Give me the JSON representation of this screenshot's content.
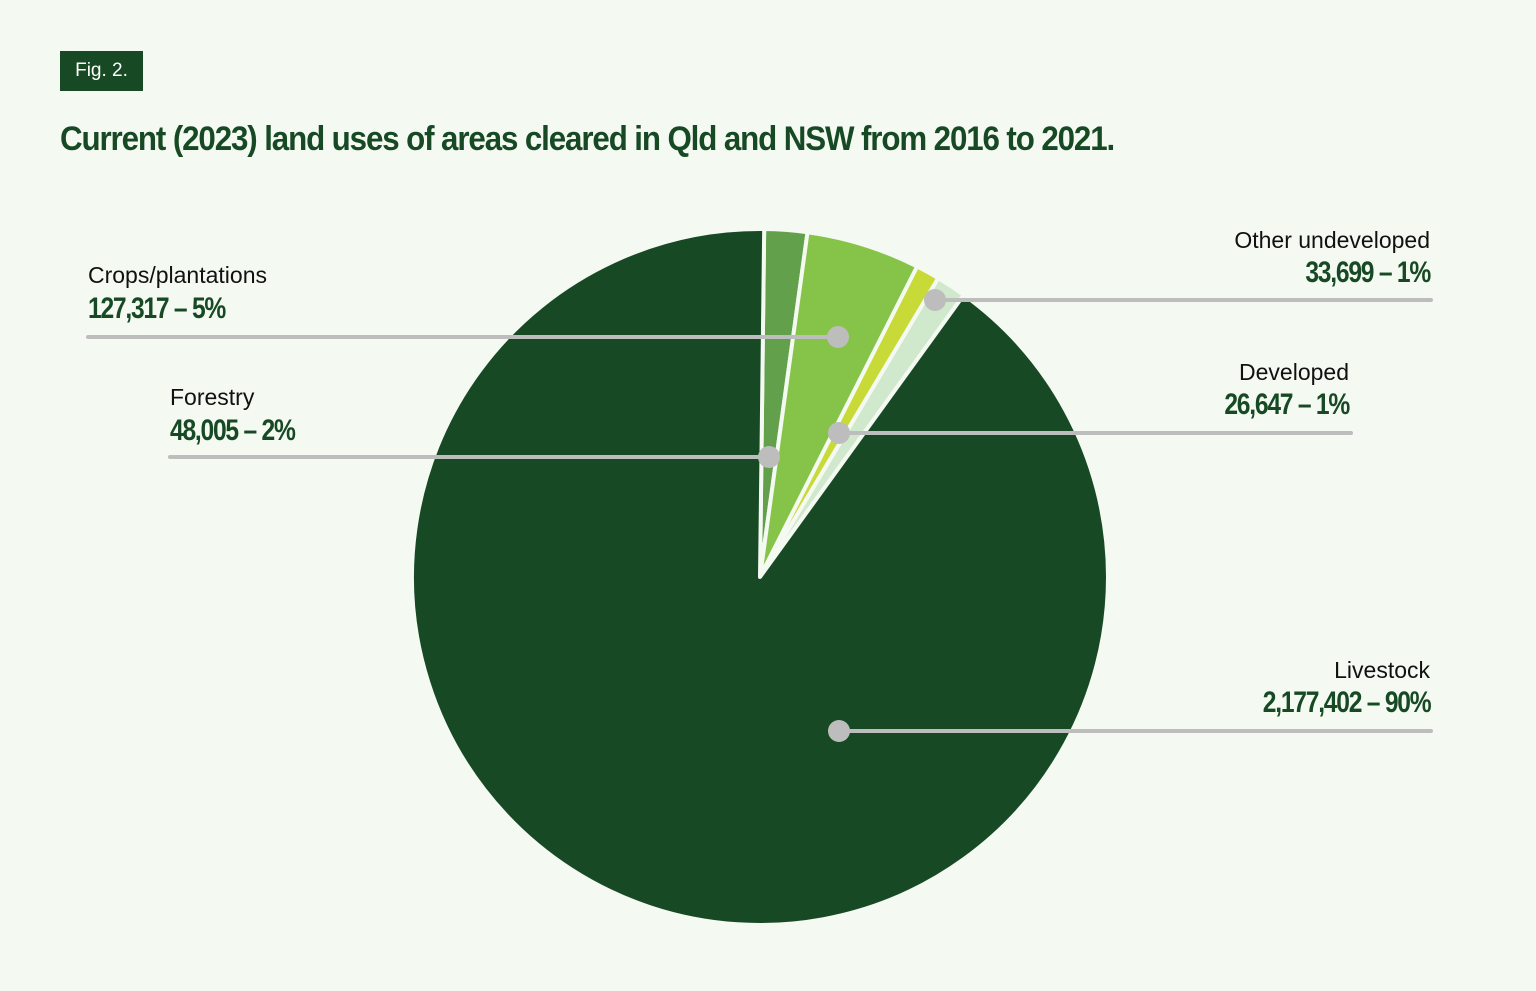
{
  "figure_label": "Fig. 2.",
  "chart_data": {
    "type": "pie",
    "title": "Current (2023) land uses of areas cleared in Qld and NSW from 2016 to 2021.",
    "slices": [
      {
        "name": "Forestry",
        "value": 48005,
        "percent_label": "2%",
        "value_label": "48,005 – 2%",
        "color": "#62a04c"
      },
      {
        "name": "Crops/plantations",
        "value": 127317,
        "percent_label": "5%",
        "value_label": "127,317 – 5%",
        "color": "#86c449"
      },
      {
        "name": "Developed",
        "value": 26647,
        "percent_label": "1%",
        "value_label": "26,647 – 1%",
        "color": "#c8da38"
      },
      {
        "name": "Other undeveloped",
        "value": 33699,
        "percent_label": "1%",
        "value_label": "33,699 – 1%",
        "color": "#d0e8cc"
      },
      {
        "name": "Livestock",
        "value": 2177402,
        "percent_label": "90%",
        "value_label": "2,177,402 – 90%",
        "color": "#174a24"
      }
    ],
    "start_angle": "12 o'clock",
    "direction": "clockwise"
  }
}
